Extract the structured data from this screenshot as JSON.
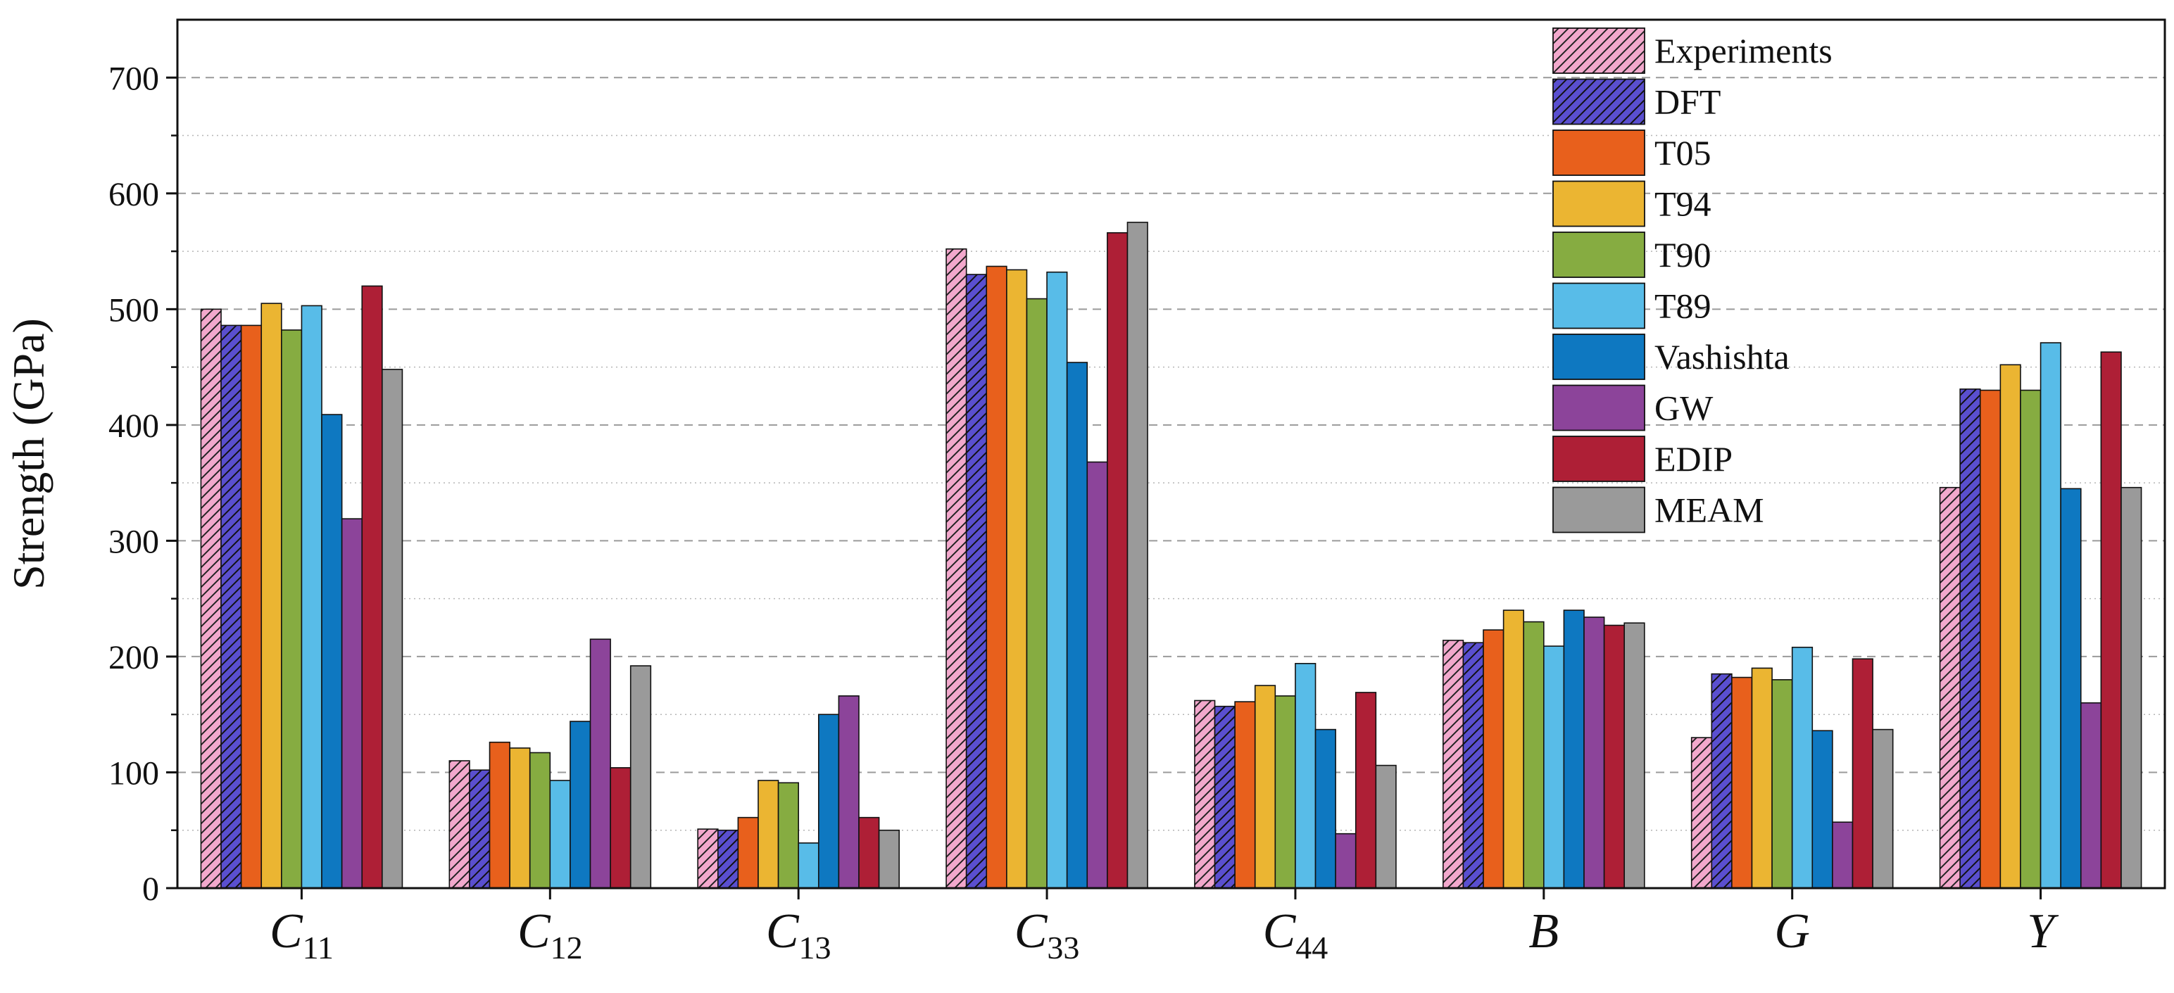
{
  "chart_data": {
    "type": "bar",
    "ylabel": "Strength (GPa)",
    "xlabel": "",
    "ylim": [
      0,
      750
    ],
    "yticks": [
      0,
      100,
      200,
      300,
      400,
      500,
      600,
      700
    ],
    "grid": {
      "major": "dashed",
      "minor": "dotted"
    },
    "legend_position": "top-right",
    "categories": [
      {
        "main": "C",
        "sub": "11"
      },
      {
        "main": "C",
        "sub": "12"
      },
      {
        "main": "C",
        "sub": "13"
      },
      {
        "main": "C",
        "sub": "33"
      },
      {
        "main": "C",
        "sub": "44"
      },
      {
        "main": "B",
        "sub": ""
      },
      {
        "main": "G",
        "sub": ""
      },
      {
        "main": "Y",
        "sub": ""
      }
    ],
    "series": [
      {
        "name": "Experiments",
        "color": "#f2a8cc",
        "hatch": true,
        "values": [
          500,
          110,
          51,
          552,
          162,
          214,
          130,
          346
        ]
      },
      {
        "name": "DFT",
        "color": "#5a4fcf",
        "hatch": true,
        "values": [
          486,
          102,
          50,
          530,
          157,
          212,
          185,
          431
        ]
      },
      {
        "name": "T05",
        "color": "#e8601c",
        "hatch": false,
        "values": [
          486,
          126,
          61,
          537,
          161,
          223,
          182,
          430
        ]
      },
      {
        "name": "T94",
        "color": "#ebb532",
        "hatch": false,
        "values": [
          505,
          121,
          93,
          534,
          175,
          240,
          190,
          452
        ]
      },
      {
        "name": "T90",
        "color": "#86ac41",
        "hatch": false,
        "values": [
          482,
          117,
          91,
          509,
          166,
          230,
          180,
          430
        ]
      },
      {
        "name": "T89",
        "color": "#58bce8",
        "hatch": false,
        "values": [
          503,
          93,
          39,
          532,
          194,
          209,
          208,
          471
        ]
      },
      {
        "name": "Vashishta",
        "color": "#0e78c1",
        "hatch": false,
        "values": [
          409,
          144,
          150,
          454,
          137,
          240,
          136,
          345
        ]
      },
      {
        "name": "GW",
        "color": "#8c449a",
        "hatch": false,
        "values": [
          319,
          215,
          166,
          368,
          47,
          234,
          57,
          160
        ]
      },
      {
        "name": "EDIP",
        "color": "#ae1f36",
        "hatch": false,
        "values": [
          520,
          104,
          61,
          566,
          169,
          227,
          198,
          463
        ]
      },
      {
        "name": "MEAM",
        "color": "#9a9a9a",
        "hatch": false,
        "values": [
          448,
          192,
          50,
          575,
          106,
          229,
          137,
          346
        ]
      }
    ]
  }
}
